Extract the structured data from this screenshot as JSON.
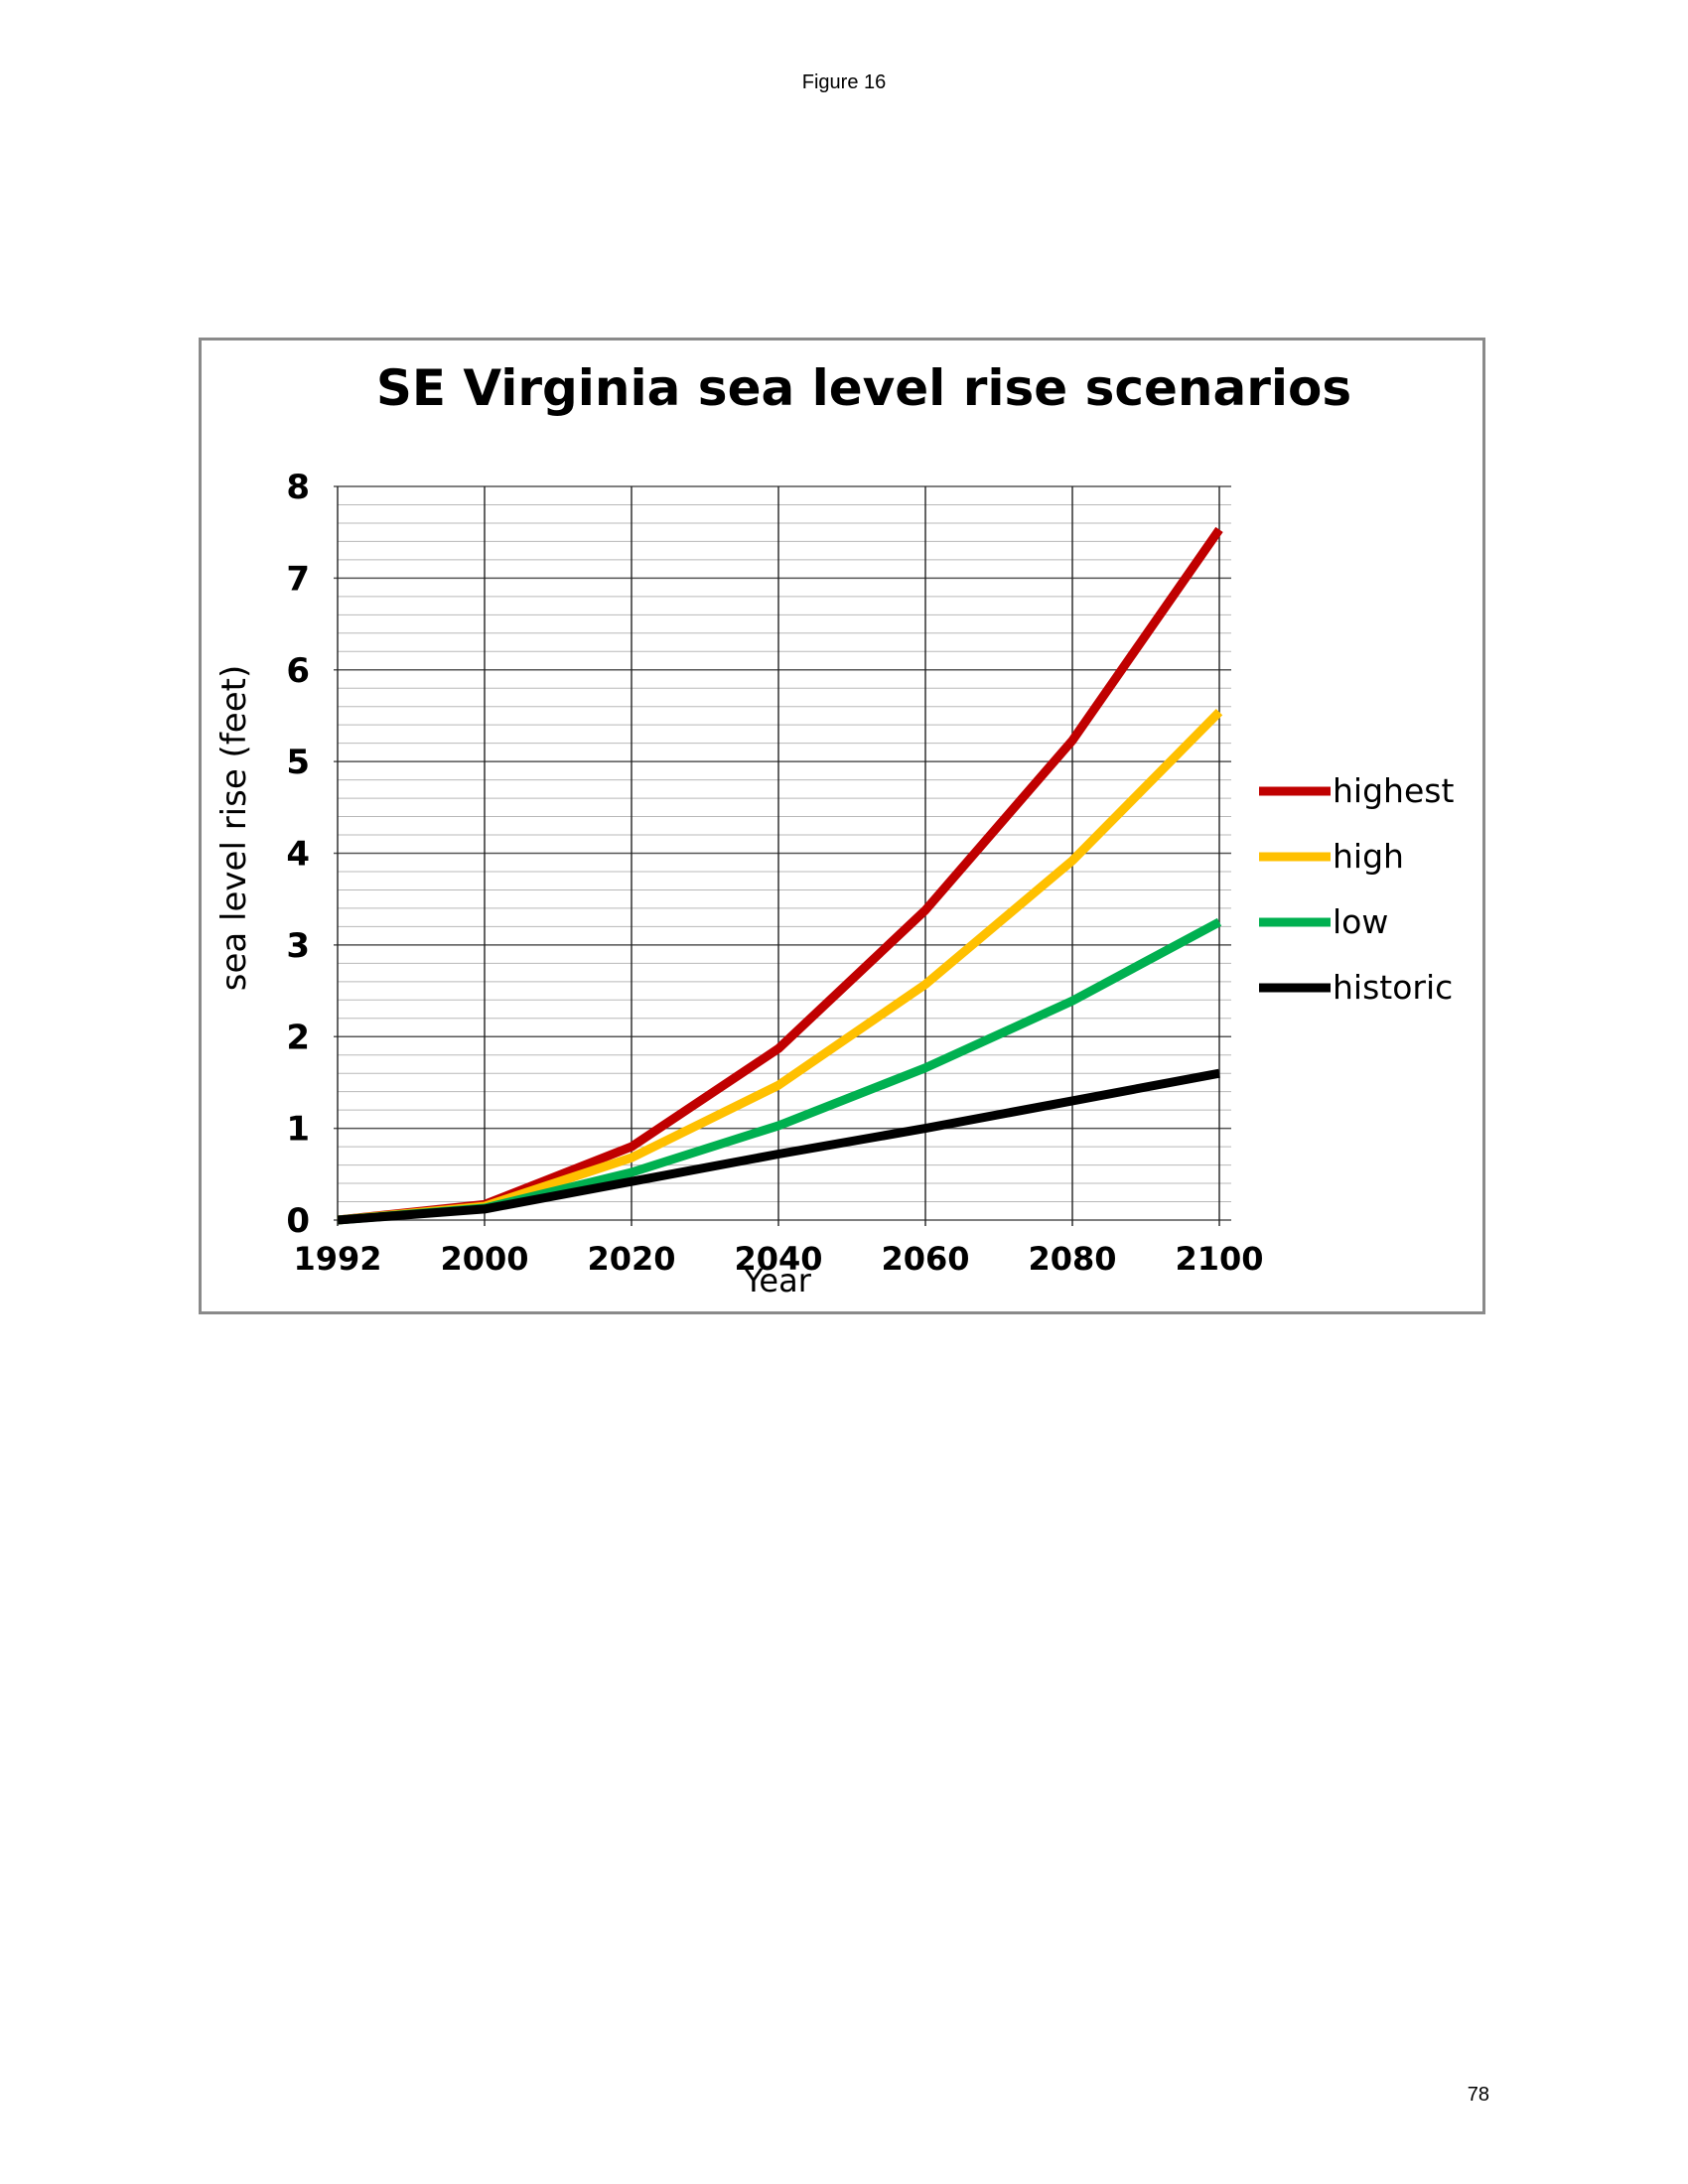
{
  "page": {
    "header": "Figure 16",
    "page_number": "78"
  },
  "chart_data": {
    "type": "line",
    "title": "SE Virginia sea level rise scenarios",
    "xlabel": "Year",
    "ylabel": "sea level rise (feet)",
    "x": [
      1992,
      2000,
      2020,
      2040,
      2060,
      2080,
      2100
    ],
    "x_tick_labels": [
      "1992",
      "2000",
      "2020",
      "2040",
      "2060",
      "2080",
      "2100"
    ],
    "y_tick_labels": [
      "0",
      "1",
      "2",
      "3",
      "4",
      "5",
      "6",
      "7",
      "8"
    ],
    "ylim": [
      0,
      8
    ],
    "xaxis_scale": "categorical (evenly spaced)",
    "grid": true,
    "legend_position": "right",
    "series": [
      {
        "name": "highest",
        "color": "#C00000",
        "values": [
          0,
          0.17,
          0.8,
          1.87,
          3.38,
          5.23,
          7.53
        ]
      },
      {
        "name": "high",
        "color": "#FFC000",
        "values": [
          0,
          0.15,
          0.68,
          1.47,
          2.57,
          3.92,
          5.54
        ]
      },
      {
        "name": "low",
        "color": "#00B050",
        "values": [
          0,
          0.13,
          0.52,
          1.03,
          1.66,
          2.39,
          3.25
        ]
      },
      {
        "name": "historic",
        "color": "#000000",
        "values": [
          0,
          0.12,
          0.42,
          0.72,
          1.0,
          1.3,
          1.6
        ]
      }
    ]
  }
}
